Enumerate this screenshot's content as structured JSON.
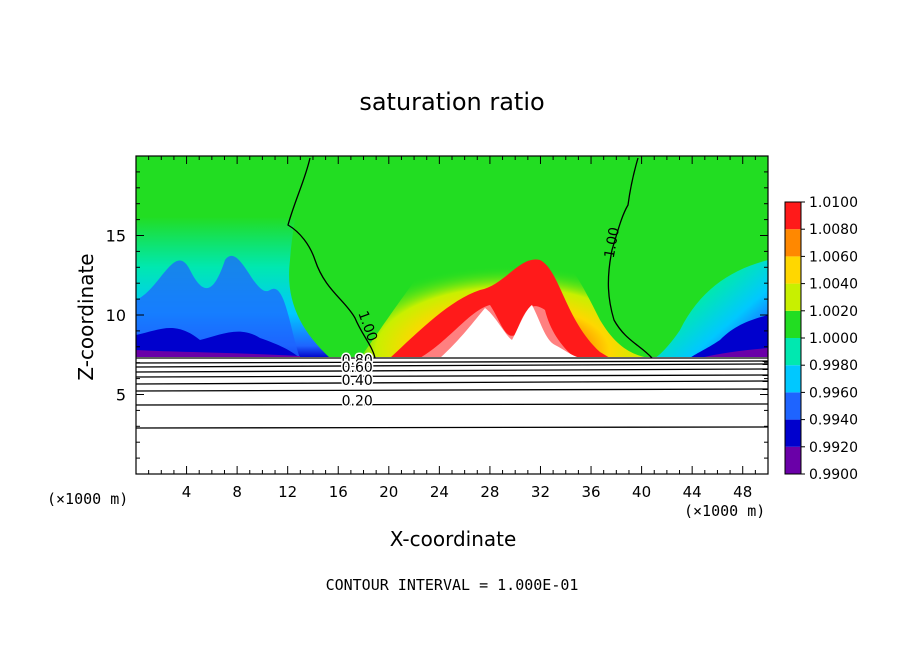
{
  "chart_data": {
    "type": "heatmap",
    "title": "saturation ratio",
    "xlabel": "X-coordinate",
    "ylabel": "Z-coordinate",
    "x_unit_label_left": "(×1000 m)",
    "x_unit_label_right": "(×1000 m)",
    "footnote": "CONTOUR INTERVAL = 1.000E-01",
    "xlim": [
      0,
      50
    ],
    "ylim": [
      0,
      20
    ],
    "x_ticks": [
      4,
      8,
      12,
      16,
      20,
      24,
      28,
      32,
      36,
      40,
      44,
      48
    ],
    "y_ticks": [
      5,
      10,
      15
    ],
    "colorbar": {
      "levels": [
        0.99,
        0.992,
        0.994,
        0.996,
        0.998,
        1.0,
        1.002,
        1.004,
        1.006,
        1.008,
        1.01
      ],
      "tick_labels": [
        "0.9900",
        "0.9920",
        "0.9940",
        "0.9960",
        "0.9980",
        "1.0000",
        "1.0020",
        "1.0040",
        "1.0060",
        "1.0080",
        "1.0100"
      ],
      "colors": [
        "#6a00a8",
        "#0000cd",
        "#1e64ff",
        "#00c8ff",
        "#00e8b0",
        "#22dd22",
        "#c8f000",
        "#ffd700",
        "#ff8800",
        "#ff1a1a",
        "#ff8080"
      ]
    },
    "contour_labels": [
      {
        "text": "1.00",
        "x": 18.0,
        "z": 9.2
      },
      {
        "text": "1.00",
        "x": 38.0,
        "z": 14.5
      },
      {
        "text": "0.80",
        "x": 17.5,
        "z": 6.9
      },
      {
        "text": "0.60",
        "x": 17.5,
        "z": 6.4
      },
      {
        "text": "0.40",
        "x": 17.5,
        "z": 5.6
      },
      {
        "text": "0.20",
        "x": 17.5,
        "z": 4.3
      }
    ]
  }
}
